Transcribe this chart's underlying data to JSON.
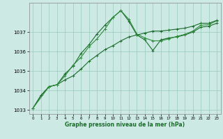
{
  "bg_color": "#cce9e4",
  "grid_color": "#99ccbb",
  "line_color": "#1a6b2a",
  "line_color2": "#2d8b3a",
  "xlabel": "Graphe pression niveau de la mer (hPa)",
  "xlim": [
    -0.5,
    23.5
  ],
  "ylim": [
    1032.8,
    1038.5
  ],
  "yticks": [
    1033,
    1034,
    1035,
    1036,
    1037
  ],
  "xticks": [
    0,
    1,
    2,
    3,
    4,
    5,
    6,
    7,
    8,
    9,
    10,
    11,
    12,
    13,
    14,
    15,
    16,
    17,
    18,
    19,
    20,
    21,
    22,
    23
  ],
  "series1_x": [
    0,
    1,
    2,
    3,
    4,
    5,
    6,
    7,
    8,
    9,
    10,
    11,
    12,
    13,
    14,
    15,
    16,
    17,
    18,
    19,
    20,
    21,
    22,
    23
  ],
  "series1_y": [
    1033.1,
    1033.75,
    1034.2,
    1034.3,
    1034.85,
    1035.25,
    1035.9,
    1036.35,
    1036.9,
    1037.35,
    1037.75,
    1038.1,
    1037.55,
    1036.85,
    1036.6,
    1036.05,
    1036.6,
    1036.7,
    1036.75,
    1036.85,
    1037.0,
    1037.25,
    1037.3,
    1037.45
  ],
  "series2_x": [
    0,
    1,
    2,
    3,
    4,
    5,
    6,
    7,
    8,
    9,
    10,
    11,
    12,
    13,
    14,
    15,
    16,
    17,
    18,
    19,
    20,
    21,
    22,
    23
  ],
  "series2_y": [
    1033.1,
    1033.75,
    1034.2,
    1034.3,
    1034.55,
    1034.75,
    1035.1,
    1035.5,
    1035.8,
    1036.1,
    1036.3,
    1036.55,
    1036.75,
    1036.85,
    1036.95,
    1037.05,
    1037.05,
    1037.1,
    1037.15,
    1037.2,
    1037.3,
    1037.45,
    1037.45,
    1037.6
  ],
  "series3_x": [
    0,
    2,
    3,
    4,
    5,
    6,
    7,
    8,
    9,
    10,
    11,
    12,
    13,
    14,
    15,
    16,
    17,
    18,
    19,
    20,
    21,
    22,
    23
  ],
  "series3_y": [
    1033.1,
    1034.2,
    1034.3,
    1034.75,
    1035.3,
    1035.7,
    1036.25,
    1036.65,
    1037.15,
    1037.75,
    1038.1,
    1037.65,
    1036.9,
    1036.7,
    1036.55,
    1036.55,
    1036.65,
    1036.78,
    1036.88,
    1037.05,
    1037.35,
    1037.38,
    1037.58
  ],
  "marker": "+",
  "markersize": 3,
  "linewidth": 0.8
}
